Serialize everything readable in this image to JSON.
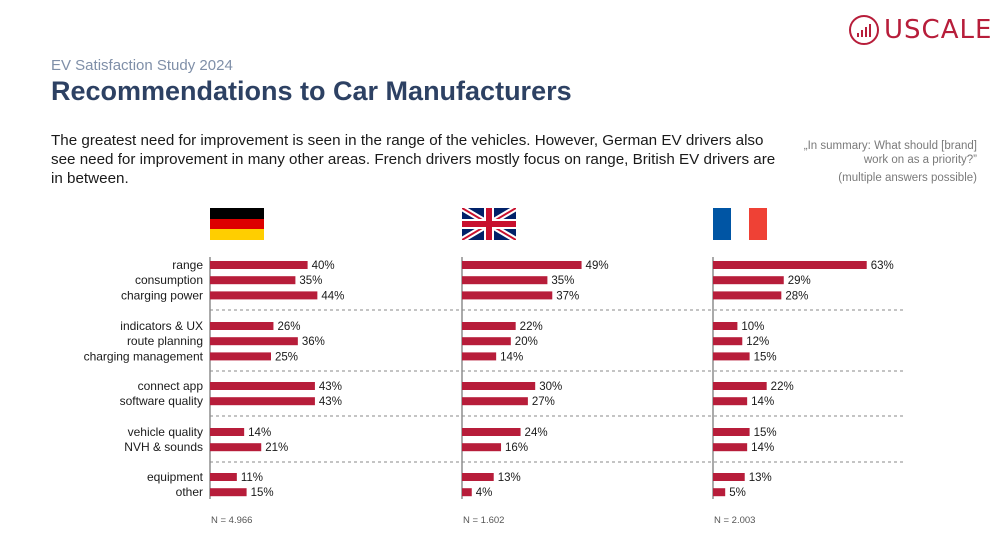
{
  "logo": {
    "text": "USCALE"
  },
  "header": {
    "subtitle": "EV Satisfaction Study 2024",
    "title": "Recommendations to Car Manufacturers"
  },
  "description": "The greatest need for improvement is seen in the range of the vehicles. However, German EV drivers also see need for improvement in many other areas. French drivers mostly focus on range, British EV drivers are in between.",
  "side_note": {
    "question": "„In summary: What should [brand] work on as a priority?”",
    "note": "(multiple answers possible)"
  },
  "colors": {
    "bar": "#b71d3a",
    "title": "#2d4163",
    "subtitle": "#7f8fa8",
    "separator": "#8a8a8a"
  },
  "chart_data": {
    "type": "bar",
    "orientation": "horizontal",
    "unit": "%",
    "groups": [
      [
        "range",
        "consumption",
        "charging power"
      ],
      [
        "indicators & UX",
        "route planning",
        "charging management"
      ],
      [
        "connect app",
        "software quality"
      ],
      [
        "vehicle quality",
        "NVH & sounds"
      ],
      [
        "equipment",
        "other"
      ]
    ],
    "categories": [
      "range",
      "consumption",
      "charging power",
      "indicators & UX",
      "route planning",
      "charging management",
      "connect app",
      "software quality",
      "vehicle quality",
      "NVH & sounds",
      "equipment",
      "other"
    ],
    "series": [
      {
        "country": "germany",
        "flag": "flag-germany-icon",
        "values": [
          40,
          35,
          44,
          26,
          36,
          25,
          43,
          43,
          14,
          21,
          11,
          15
        ],
        "n_label": "N = 4.966"
      },
      {
        "country": "uk",
        "flag": "flag-uk-icon",
        "values": [
          49,
          35,
          37,
          22,
          20,
          14,
          30,
          27,
          24,
          16,
          13,
          4
        ],
        "n_label": "N = 1.602"
      },
      {
        "country": "france",
        "flag": "flag-france-icon",
        "values": [
          63,
          29,
          28,
          10,
          12,
          15,
          22,
          14,
          15,
          14,
          13,
          5
        ],
        "n_label": "N = 2.003"
      }
    ],
    "xlim": [
      0,
      100
    ],
    "grid": false,
    "legend": "none"
  }
}
